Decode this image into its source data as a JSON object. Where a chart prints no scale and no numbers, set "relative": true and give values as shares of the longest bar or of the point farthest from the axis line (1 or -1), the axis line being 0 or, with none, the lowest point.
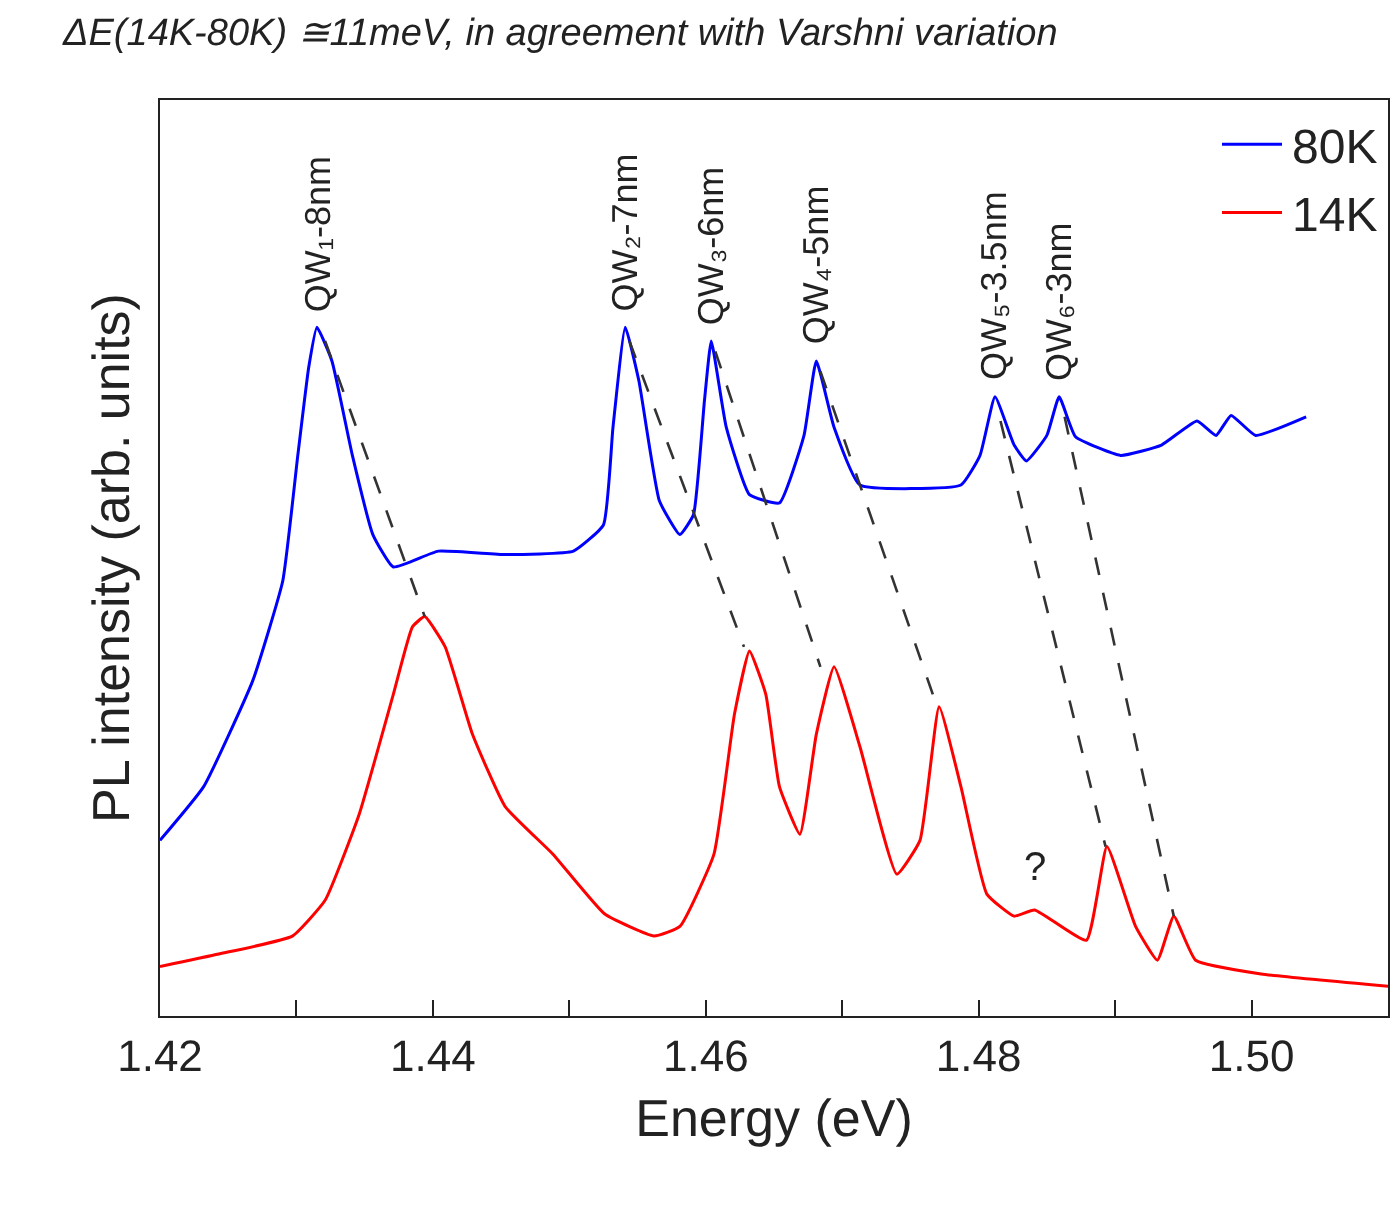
{
  "chart_data": {
    "type": "line",
    "title": "ΔE(14K-80K) ≅11meV, in agreement with Varshni variation",
    "xlabel": "Energy (eV)",
    "ylabel": "PL intensity (arb. units)",
    "relative": true,
    "legend": "top right",
    "marker": "none",
    "xlim": [
      1.42,
      1.51
    ],
    "xticks": [
      {
        "value": 1.42,
        "label": "1.42"
      },
      {
        "value": 1.43,
        "label": null
      },
      {
        "value": 1.44,
        "label": "1.44"
      },
      {
        "value": 1.45,
        "label": null
      },
      {
        "value": 1.46,
        "label": "1.46"
      },
      {
        "value": 1.47,
        "label": null
      },
      {
        "value": 1.48,
        "label": "1.48"
      },
      {
        "value": 1.49,
        "label": null
      },
      {
        "value": 1.5,
        "label": "1.50"
      },
      {
        "value": 1.51,
        "label": null
      }
    ],
    "series": [
      {
        "name": "80K",
        "color": "#0000ff",
        "x": [
          1.42,
          1.4232,
          1.4268,
          1.429,
          1.4301,
          1.4309,
          1.4315,
          1.4326,
          1.4341,
          1.4356,
          1.4371,
          1.4404,
          1.4453,
          1.4503,
          1.4525,
          1.4532,
          1.4541,
          1.4551,
          1.4566,
          1.4581,
          1.4591,
          1.4599,
          1.4604,
          1.4615,
          1.4632,
          1.4654,
          1.4672,
          1.4681,
          1.4694,
          1.4713,
          1.4787,
          1.4801,
          1.4812,
          1.4826,
          1.4835,
          1.485,
          1.4859,
          1.4871,
          1.4904,
          1.4934,
          1.496,
          1.4974,
          1.4985,
          1.5003,
          1.504
        ],
        "values": [
          0.255,
          0.333,
          0.487,
          0.632,
          0.814,
          0.942,
          1.0,
          0.951,
          0.814,
          0.699,
          0.652,
          0.675,
          0.67,
          0.675,
          0.713,
          0.855,
          1.0,
          0.922,
          0.748,
          0.699,
          0.728,
          0.893,
          0.98,
          0.855,
          0.757,
          0.745,
          0.843,
          0.951,
          0.855,
          0.771,
          0.771,
          0.814,
          0.899,
          0.829,
          0.806,
          0.843,
          0.899,
          0.841,
          0.814,
          0.829,
          0.864,
          0.843,
          0.872,
          0.843,
          0.87
        ]
      },
      {
        "name": "14K",
        "color": "#ff0000",
        "x": [
          1.42,
          1.4243,
          1.4297,
          1.4321,
          1.4346,
          1.4371,
          1.4385,
          1.4394,
          1.4409,
          1.4429,
          1.4453,
          1.4488,
          1.4526,
          1.4562,
          1.4581,
          1.4606,
          1.4621,
          1.4632,
          1.4644,
          1.4654,
          1.4669,
          1.4681,
          1.4694,
          1.4713,
          1.474,
          1.4757,
          1.4771,
          1.4787,
          1.4806,
          1.4826,
          1.4841,
          1.4879,
          1.4894,
          1.4915,
          1.4931,
          1.4943,
          1.4959,
          1.5007,
          1.51
        ],
        "values": [
          0.072,
          0.09,
          0.116,
          0.168,
          0.293,
          0.467,
          0.565,
          0.58,
          0.536,
          0.409,
          0.304,
          0.235,
          0.148,
          0.116,
          0.13,
          0.235,
          0.438,
          0.53,
          0.467,
          0.333,
          0.264,
          0.409,
          0.507,
          0.391,
          0.206,
          0.255,
          0.449,
          0.333,
          0.177,
          0.145,
          0.154,
          0.11,
          0.246,
          0.13,
          0.081,
          0.145,
          0.081,
          0.061,
          0.043
        ]
      },
      {
        "type": "line",
        "color": "#333333",
        "line_style": "dashed",
        "x": [
          1.4321,
          1.4394
        ],
        "values": [
          0.98,
          0.58
        ]
      },
      {
        "type": "line",
        "color": "#333333",
        "line_style": "dashed",
        "x": [
          1.4544,
          1.4628
        ],
        "values": [
          0.98,
          0.536
        ]
      },
      {
        "type": "line",
        "color": "#333333",
        "line_style": "dashed",
        "x": [
          1.4607,
          1.4684
        ],
        "values": [
          0.965,
          0.507
        ]
      },
      {
        "type": "line",
        "color": "#333333",
        "line_style": "dashed",
        "x": [
          1.4684,
          1.4768
        ],
        "values": [
          0.936,
          0.458
        ]
      },
      {
        "type": "line",
        "color": "#333333",
        "line_style": "dashed",
        "x": [
          1.4816,
          1.4893
        ],
        "values": [
          0.864,
          0.246
        ]
      },
      {
        "type": "line",
        "color": "#333333",
        "line_style": "dashed",
        "x": [
          1.4863,
          1.4943
        ],
        "values": [
          0.87,
          0.145
        ]
      }
    ],
    "annotations": [
      {
        "text": "QW₁-8nm",
        "x": 1.4315,
        "y": 1.0
      },
      {
        "text": "QW₂-7nm",
        "x": 1.4541,
        "y": 1.0
      },
      {
        "text": "QW₃-6nm",
        "x": 1.4604,
        "y": 0.98
      },
      {
        "text": "QW₄-5nm",
        "x": 1.4681,
        "y": 0.951
      },
      {
        "text": "QW₅-3.5nm",
        "x": 1.4812,
        "y": 0.899
      },
      {
        "text": "QW₆-3nm",
        "x": 1.4859,
        "y": 0.899
      },
      {
        "text": "?",
        "x": 1.4841,
        "y": 0.154
      }
    ]
  }
}
